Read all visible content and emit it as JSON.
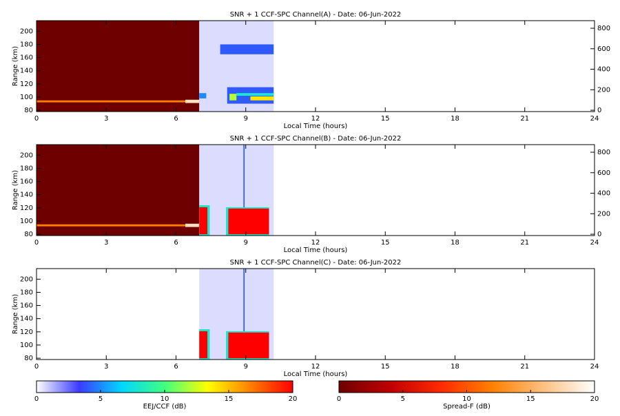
{
  "chart_data": [
    {
      "type": "heatmap",
      "title": "SNR + 1 CCF-SPC Channel(A) - Date: 06-Jun-2022",
      "xlabel": "Local Time (hours)",
      "ylabel": "Range (km)",
      "xlim": [
        0,
        24
      ],
      "xticks": [
        0,
        3,
        6,
        9,
        12,
        15,
        18,
        21,
        24
      ],
      "ylim": [
        78,
        216
      ],
      "yticks": [
        80,
        100,
        120,
        140,
        160,
        180,
        200
      ],
      "y2lim": [
        -13,
        874
      ],
      "y2ticks": [
        0,
        200,
        400,
        600,
        800
      ],
      "cells": [
        {
          "scale": "spreadf",
          "x": [
            0,
            7
          ],
          "y": [
            78,
            216
          ],
          "value": 0
        },
        {
          "scale": "spreadf",
          "x": [
            0,
            7
          ],
          "y": [
            92,
            95
          ],
          "value": 12
        },
        {
          "scale": "spreadf",
          "x": [
            6.4,
            7
          ],
          "y": [
            91,
            96
          ],
          "value": 18
        },
        {
          "scale": "eej",
          "x": [
            7,
            10.2
          ],
          "y": [
            78,
            216
          ],
          "value": 0.6
        },
        {
          "scale": "eej",
          "x": [
            7.9,
            10.2
          ],
          "y": [
            165,
            180
          ],
          "value": 4
        },
        {
          "scale": "eej",
          "x": [
            7,
            7.3
          ],
          "y": [
            98,
            106
          ],
          "value": 5
        },
        {
          "scale": "eej",
          "x": [
            8.2,
            10.2
          ],
          "y": [
            90,
            115
          ],
          "value": 4
        },
        {
          "scale": "eej",
          "x": [
            8.6,
            10.2
          ],
          "y": [
            102,
            106
          ],
          "value": 8
        },
        {
          "scale": "eej",
          "x": [
            8.3,
            8.6
          ],
          "y": [
            95,
            105
          ],
          "value": 12
        },
        {
          "scale": "eej",
          "x": [
            9.2,
            10.2
          ],
          "y": [
            95,
            101
          ],
          "value": 14
        }
      ]
    },
    {
      "type": "heatmap",
      "title": "SNR + 1 CCF-SPC Channel(B) - Date: 06-Jun-2022",
      "xlabel": "Local Time (hours)",
      "ylabel": "Range (km)",
      "xlim": [
        0,
        24
      ],
      "xticks": [
        0,
        3,
        6,
        9,
        12,
        15,
        18,
        21,
        24
      ],
      "ylim": [
        78,
        216
      ],
      "yticks": [
        80,
        100,
        120,
        140,
        160,
        180,
        200
      ],
      "y2lim": [
        -13,
        874
      ],
      "y2ticks": [
        0,
        200,
        400,
        600,
        800
      ],
      "cells": [
        {
          "scale": "spreadf",
          "x": [
            0,
            7
          ],
          "y": [
            78,
            216
          ],
          "value": 0
        },
        {
          "scale": "spreadf",
          "x": [
            0,
            7
          ],
          "y": [
            92,
            95
          ],
          "value": 12
        },
        {
          "scale": "spreadf",
          "x": [
            6.4,
            7
          ],
          "y": [
            91,
            96
          ],
          "value": 18
        },
        {
          "scale": "eej",
          "x": [
            7,
            10.2
          ],
          "y": [
            78,
            216
          ],
          "value": 0.6
        },
        {
          "scale": "eej",
          "x": [
            8.9,
            8.95
          ],
          "y": [
            78,
            216
          ],
          "value": 4
        },
        {
          "scale": "eej",
          "x": [
            7,
            7.45
          ],
          "y": [
            78,
            124
          ],
          "value": 8
        },
        {
          "scale": "eej",
          "x": [
            7,
            7.35
          ],
          "y": [
            80,
            121
          ],
          "value": 20
        },
        {
          "scale": "eej",
          "x": [
            8.15,
            10
          ],
          "y": [
            78,
            121
          ],
          "value": 8
        },
        {
          "scale": "eej",
          "x": [
            8.25,
            10
          ],
          "y": [
            80,
            119
          ],
          "value": 20
        }
      ]
    },
    {
      "type": "heatmap",
      "title": "SNR + 1 CCF-SPC Channel(C) - Date: 06-Jun-2022",
      "xlabel": "Local Time (hours)",
      "ylabel": "Range (km)",
      "xlim": [
        0,
        24
      ],
      "xticks": [
        0,
        3,
        6,
        9,
        12,
        15,
        18,
        21,
        24
      ],
      "ylim": [
        78,
        216
      ],
      "yticks": [
        80,
        100,
        120,
        140,
        160,
        180,
        200
      ],
      "cells": [
        {
          "scale": "eej",
          "x": [
            7,
            10.2
          ],
          "y": [
            78,
            216
          ],
          "value": 0.6
        },
        {
          "scale": "eej",
          "x": [
            8.9,
            8.95
          ],
          "y": [
            78,
            216
          ],
          "value": 4
        },
        {
          "scale": "eej",
          "x": [
            7,
            7.45
          ],
          "y": [
            78,
            124
          ],
          "value": 8
        },
        {
          "scale": "eej",
          "x": [
            7,
            7.35
          ],
          "y": [
            80,
            121
          ],
          "value": 20
        },
        {
          "scale": "eej",
          "x": [
            8.15,
            10
          ],
          "y": [
            78,
            121
          ],
          "value": 8
        },
        {
          "scale": "eej",
          "x": [
            8.25,
            10
          ],
          "y": [
            80,
            119
          ],
          "value": 20
        }
      ]
    }
  ],
  "colorbars": [
    {
      "scale": "eej",
      "label": "EEJ/CCF (dB)",
      "lim": [
        0,
        20
      ],
      "ticks": [
        0,
        5,
        10,
        15,
        20
      ],
      "colors": [
        "#ffffff",
        "#3a3aff",
        "#00d8ff",
        "#40ff80",
        "#ffff00",
        "#ff8000",
        "#ff0000"
      ]
    },
    {
      "scale": "spreadf",
      "label": "Spread-F (dB)",
      "lim": [
        0,
        20
      ],
      "ticks": [
        0,
        5,
        10,
        15,
        20
      ],
      "colors": [
        "#6e0000",
        "#c00000",
        "#ff2a00",
        "#ff8000",
        "#ffc080",
        "#ffffff"
      ]
    }
  ]
}
